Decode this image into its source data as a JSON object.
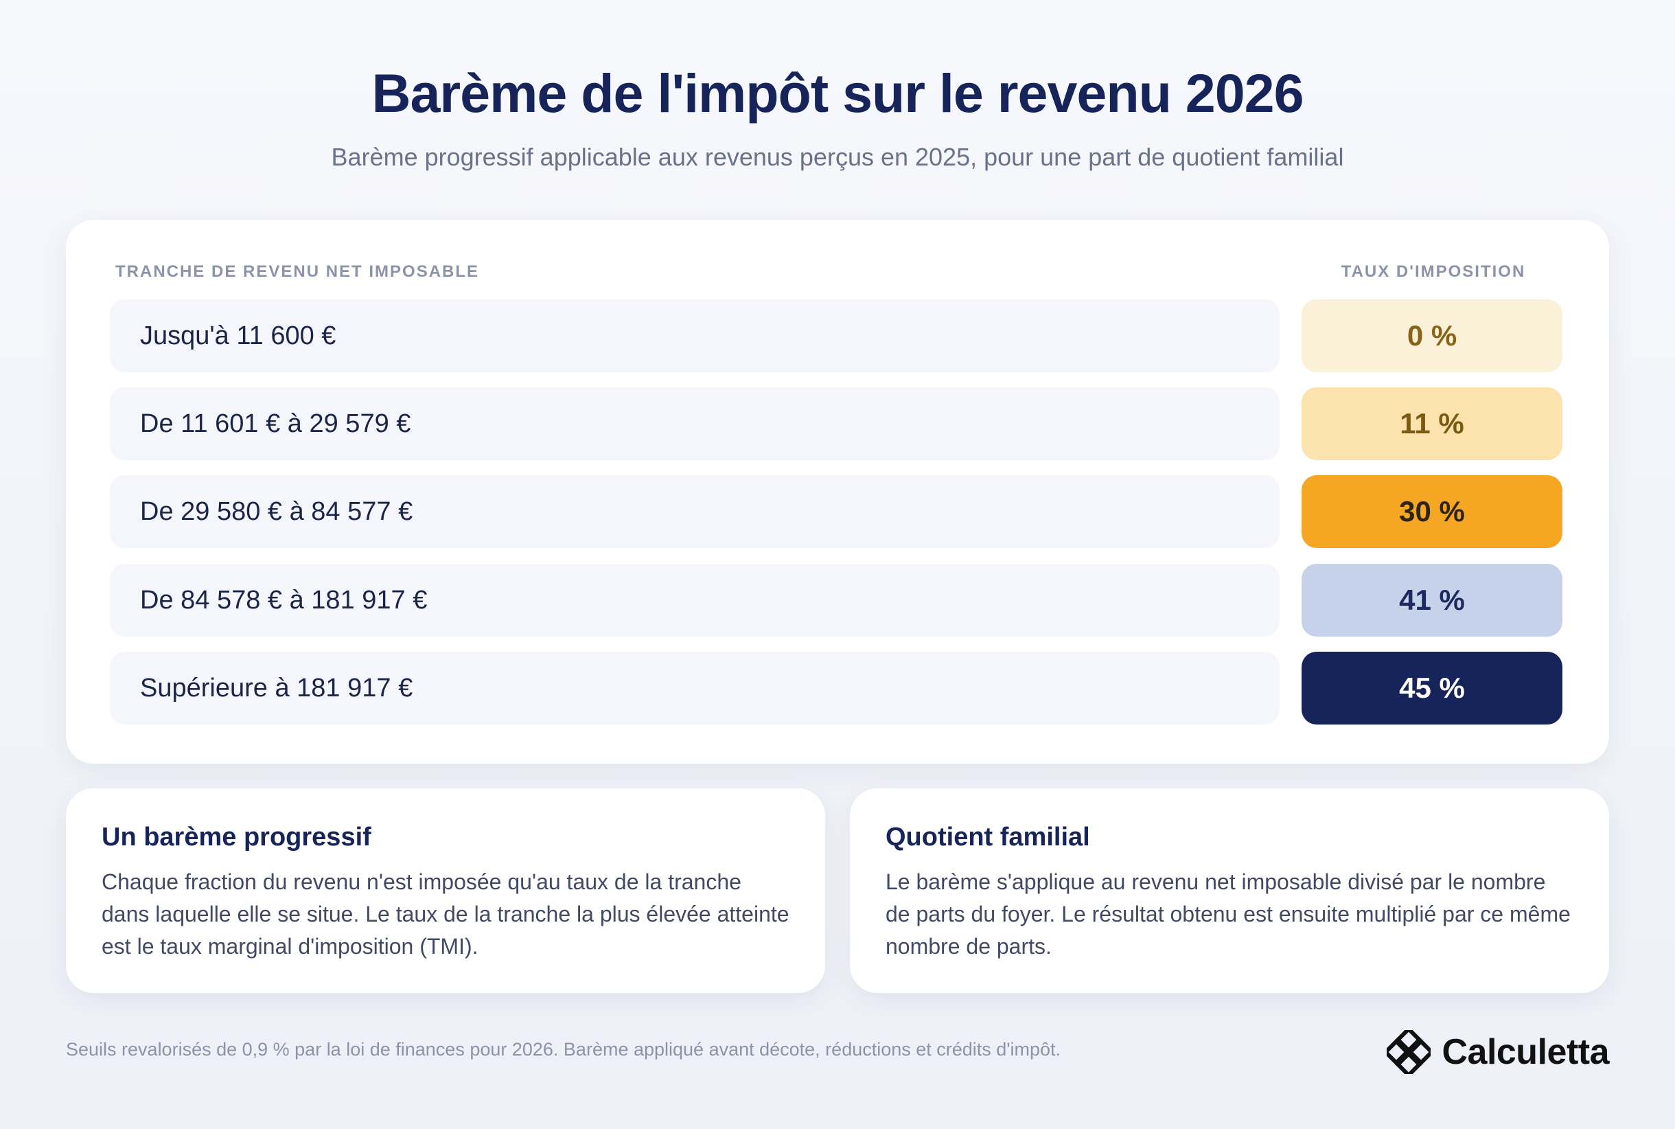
{
  "header": {
    "title": "Barème de l'impôt sur le revenu 2026",
    "subtitle": "Barème progressif applicable aux revenus perçus en 2025, pour une part de quotient familial"
  },
  "table": {
    "column_income": "TRANCHE DE REVENU NET IMPOSABLE",
    "column_rate": "TAUX D'IMPOSITION",
    "rows": [
      {
        "bracket": "Jusqu'à 11 600 €",
        "rate": "0 %",
        "rate_bg": "#fbf0d8",
        "rate_color": "#876318"
      },
      {
        "bracket": "De 11 601 € à 29 579 €",
        "rate": "11 %",
        "rate_bg": "#fce3ad",
        "rate_color": "#7a5a12"
      },
      {
        "bracket": "De 29 580 € à 84 577 €",
        "rate": "30 %",
        "rate_bg": "#f5a623",
        "rate_color": "#2e2410"
      },
      {
        "bracket": "De 84 578 € à 181 917 €",
        "rate": "41 %",
        "rate_bg": "#c6d2e9",
        "rate_color": "#1c2a5f"
      },
      {
        "bracket": "Supérieure à 181 917 €",
        "rate": "45 %",
        "rate_bg": "#17245a",
        "rate_color": "#ffffff"
      }
    ]
  },
  "info": {
    "progressive": {
      "title": "Un barème progressif",
      "text": "Chaque fraction du revenu n'est imposée qu'au taux de la tranche dans laquelle elle se situe. Le taux de la tranche la plus élevée atteinte est le taux marginal d'imposition (TMI)."
    },
    "quotient": {
      "title": "Quotient familial",
      "text": "Le barème s'applique au revenu net imposable divisé par le nombre de parts du foyer. Le résultat obtenu est ensuite multiplié par ce même nombre de parts."
    }
  },
  "footer": {
    "note": "Seuils revalorisés de 0,9 % par la loi de finances pour 2026. Barème appliqué avant décote, réductions et crédits d'impôt.",
    "brand_name": "Calculetta",
    "brand_icon": "calculetta-logo-icon"
  },
  "colors": {
    "navy": "#17245a",
    "accent_orange": "#f5a623",
    "row_background": "#f5f6fb"
  }
}
